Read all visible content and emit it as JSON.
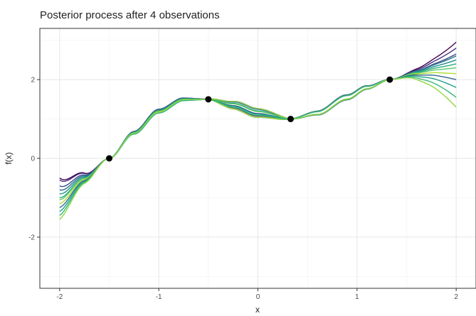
{
  "chart_data": {
    "type": "line",
    "title": "Posterior process after 4 observations",
    "xlabel": "x",
    "ylabel": "f(x)",
    "xlim": [
      -2.2,
      2.2
    ],
    "ylim": [
      -3.3,
      3.3
    ],
    "x_ticks": [
      -2,
      -1,
      0,
      1,
      2
    ],
    "x_tick_labels": [
      "-2",
      "-1",
      "0",
      "1",
      "2"
    ],
    "y_ticks": [
      -2,
      0,
      2
    ],
    "y_tick_labels": [
      "-2",
      "0",
      "2"
    ],
    "grid": true,
    "legend": "none",
    "observations": [
      {
        "x": -1.5,
        "y": 0.0
      },
      {
        "x": -0.5,
        "y": 1.5
      },
      {
        "x": 0.33,
        "y": 1.0
      },
      {
        "x": 1.33,
        "y": 2.0
      }
    ],
    "mean_curve": {
      "x": [
        -2.0,
        -1.75,
        -1.5,
        -1.25,
        -1.0,
        -0.75,
        -0.5,
        -0.25,
        0.0,
        0.33,
        0.6,
        0.9,
        1.1,
        1.33,
        1.6,
        1.8,
        2.0
      ],
      "y": [
        -1.0,
        -0.5,
        0.0,
        0.65,
        1.2,
        1.5,
        1.5,
        1.35,
        1.15,
        1.0,
        1.15,
        1.55,
        1.8,
        2.0,
        2.15,
        2.2,
        2.2
      ]
    },
    "sample_end_values": {
      "left_x": -2.0,
      "left_y": [
        -0.5,
        -0.55,
        -0.7,
        -0.8,
        -0.9,
        -1.0,
        -1.05,
        -1.15,
        -1.25,
        -1.35,
        -1.45,
        -1.55
      ],
      "right_x": 2.0,
      "right_y": [
        2.95,
        2.8,
        2.65,
        2.6,
        2.5,
        2.4,
        2.3,
        2.15,
        2.0,
        1.8,
        1.55,
        1.3
      ]
    },
    "series_colors": [
      "#440154",
      "#472d7b",
      "#3b528b",
      "#2c728e",
      "#21918c",
      "#28ae80",
      "#5ec962",
      "#addc30",
      "#31688e",
      "#1fa187",
      "#35b779",
      "#90d743"
    ]
  }
}
